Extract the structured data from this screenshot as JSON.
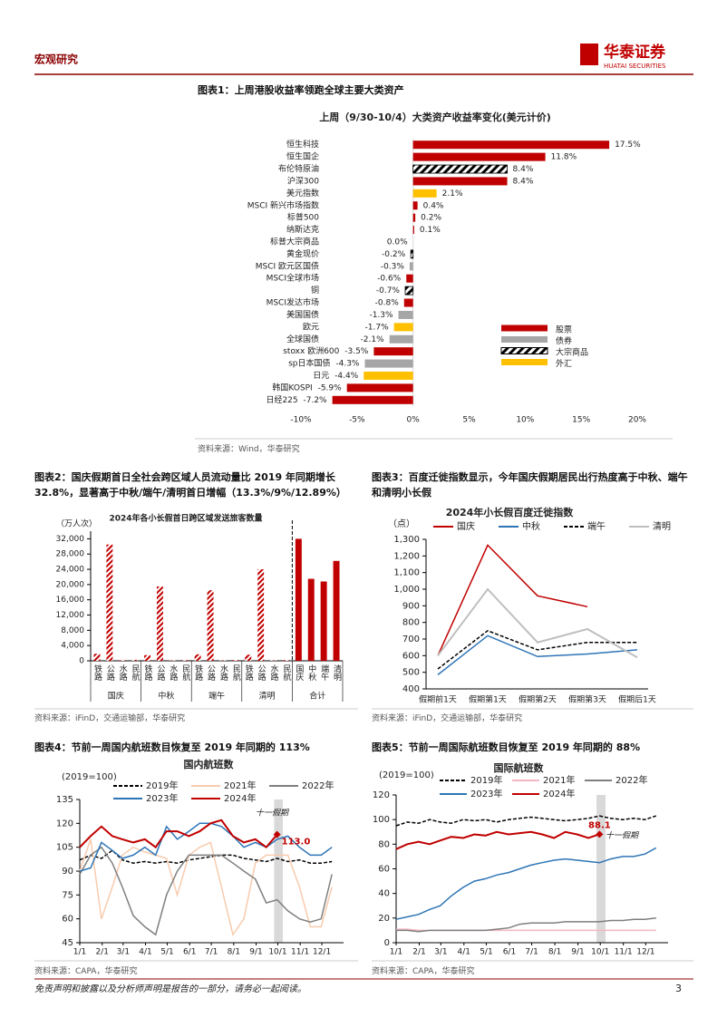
{
  "header": {
    "section": "宏观研究",
    "logo": "华泰证券",
    "logo_en": "HUATAI SECURITIES"
  },
  "footer": {
    "disclaimer": "免责声明和披露以及分析师声明是报告的一部分，请务必一起阅读。",
    "page": 3
  },
  "chart_data": [
    {
      "type": "hbar",
      "caption": "图表1：上周港股收益率领跑全球主要大类资产",
      "title": "上周（9/30-10/4）大类资产收益率变化(美元计价)",
      "source": "资料来源：Wind，华泰研究",
      "categories": [
        "恒生科技",
        "恒生国企",
        "布伦特原油",
        "沪深300",
        "美元指数",
        "MSCI 新兴市场指数",
        "标普500",
        "纳斯达克",
        "标普大宗商品",
        "黄金现价",
        "MSCI 欧元区国债",
        "MSCI全球市场",
        "铜",
        "MSCI发达市场",
        "美国国债",
        "欧元",
        "全球国债",
        "stoxx 欧洲600",
        "sp日本国债",
        "日元",
        "韩国KOSPI",
        "日经225"
      ],
      "values": [
        17.5,
        11.8,
        8.4,
        8.4,
        2.1,
        0.4,
        0.2,
        0.1,
        0.0,
        -0.2,
        -0.3,
        -0.6,
        -0.7,
        -0.8,
        -1.3,
        -1.7,
        -2.1,
        -3.5,
        -4.3,
        -4.4,
        -5.9,
        -7.2
      ],
      "value_labels": [
        "17.5%",
        "11.8%",
        "8.4%",
        "8.4%",
        "2.1%",
        "0.4%",
        "0.2%",
        "0.1%",
        "0.0%",
        "-0.2%",
        "-0.3%",
        "-0.6%",
        "-0.7%",
        "-0.8%",
        "-1.3%",
        "-1.7%",
        "-2.1%",
        "-3.5%",
        "-4.3%",
        "-4.4%",
        "-5.9%",
        "-7.2%"
      ],
      "colors": [
        "#c00000",
        "#c00000",
        "hatch",
        "#c00000",
        "#ffc000",
        "#c00000",
        "#c00000",
        "#c00000",
        "hatch",
        "hatch",
        "#a6a6a6",
        "#c00000",
        "hatch",
        "#c00000",
        "#a6a6a6",
        "#ffc000",
        "#a6a6a6",
        "#c00000",
        "#a6a6a6",
        "#ffc000",
        "#c00000",
        "#c00000"
      ],
      "legend": [
        {
          "name": "股票",
          "color": "#c00000"
        },
        {
          "name": "债券",
          "color": "#a6a6a6"
        },
        {
          "name": "大宗商品",
          "color": "hatch"
        },
        {
          "name": "外汇",
          "color": "#ffc000"
        }
      ],
      "xlim": [
        -10,
        20
      ],
      "xticks": [
        {
          "value": -10,
          "label": "-10%"
        },
        {
          "value": -5,
          "label": "-5%"
        },
        {
          "value": 0,
          "label": "0%"
        },
        {
          "value": 5,
          "label": "5%"
        },
        {
          "value": 10,
          "label": "10%"
        },
        {
          "value": 15,
          "label": "15%"
        },
        {
          "value": 20,
          "label": "20%"
        }
      ]
    },
    {
      "type": "grouped-bar",
      "caption": "图表2：国庆假期首日全社会跨区域人员流动量比 2019 年同期增长 32.8%，显著高于中秋/端午/清明首日增幅（13.3%/9%/12.89%）",
      "title": "2024年各小长假首日跨区域发送旅客数量",
      "unit": "（万人次）",
      "source": "资料来源：iFinD，交通运输部，华泰研究",
      "color": "#c00000",
      "groups": [
        {
          "name": "国庆",
          "style": "hatch",
          "categories": [
            "铁路",
            "公路",
            "水路",
            "民航"
          ],
          "values": [
            1850,
            30500,
            150,
            250
          ]
        },
        {
          "name": "中秋",
          "style": "hatch",
          "categories": [
            "铁路",
            "公路",
            "水路",
            "民航"
          ],
          "values": [
            1500,
            19500,
            100,
            180
          ]
        },
        {
          "name": "端午",
          "style": "hatch",
          "categories": [
            "铁路",
            "公路",
            "水路",
            "民航"
          ],
          "values": [
            1700,
            18500,
            100,
            180
          ]
        },
        {
          "name": "清明",
          "style": "hatch",
          "categories": [
            "铁路",
            "公路",
            "水路",
            "民航"
          ],
          "values": [
            1600,
            24000,
            100,
            180
          ]
        },
        {
          "name": "合计",
          "style": "solid",
          "categories": [
            "国庆",
            "中秋",
            "端午",
            "清明"
          ],
          "values": [
            32000,
            21500,
            20800,
            26200
          ]
        }
      ],
      "ylim": [
        0,
        34000
      ],
      "yticks": [
        0,
        {
          "value": 4000,
          "label": "4,000"
        },
        {
          "value": 8000,
          "label": "8,000"
        },
        {
          "value": 12000,
          "label": "12,000"
        },
        {
          "value": 16000,
          "label": "16,000"
        },
        {
          "value": 20000,
          "label": "20,000"
        },
        {
          "value": 24000,
          "label": "24,000"
        },
        {
          "value": 28000,
          "label": "28,000"
        },
        {
          "value": 32000,
          "label": "32,000"
        }
      ]
    },
    {
      "type": "line",
      "caption": "图表3：百度迁徙指数显示，今年国庆假期居民出行热度高于中秋、端午和清明小长假",
      "title": "2024年小长假百度迁徙指数",
      "unit": "（点）",
      "source": "资料来源：iFinD，交通运输部，华泰研究",
      "categories": [
        "假期前1天",
        "假期第1天",
        "假期第2天",
        "假期第3天",
        "假期后1天"
      ],
      "series": [
        {
          "name": "国庆",
          "color": "#c00000",
          "values": [
            600,
            1265,
            960,
            895,
            null
          ]
        },
        {
          "name": "中秋",
          "color": "#2e75b6",
          "values": [
            485,
            720,
            595,
            610,
            635
          ]
        },
        {
          "name": "端午",
          "color": "#000000",
          "dash": true,
          "values": [
            520,
            750,
            635,
            680,
            680
          ]
        },
        {
          "name": "清明",
          "color": "#bfbfbf",
          "values": [
            600,
            1000,
            680,
            760,
            590
          ]
        }
      ],
      "ylim": [
        400,
        1300
      ],
      "yticks": [
        400,
        500,
        600,
        700,
        800,
        900,
        {
          "value": 1000,
          "label": "1,000"
        },
        {
          "value": 1100,
          "label": "1,100"
        },
        {
          "value": 1200,
          "label": "1,200"
        },
        {
          "value": 1300,
          "label": "1,300"
        }
      ]
    },
    {
      "type": "line",
      "caption": "图表4：节前一周国内航班数目恢复至 2019 年同期的 113%",
      "title": "国内航班数",
      "unit": "(2019=100)",
      "source": "资料来源：CAPA，华泰研究",
      "x": [
        1,
        16,
        31,
        46,
        60,
        75,
        91,
        106,
        121,
        136,
        152,
        167,
        182,
        197,
        213,
        228,
        244,
        259,
        274,
        289,
        305,
        320,
        335,
        350
      ],
      "xlim": [
        1,
        366
      ],
      "xticks": [
        {
          "value": 1,
          "label": "1/1"
        },
        {
          "value": 32,
          "label": "2/1"
        },
        {
          "value": 61,
          "label": "3/1"
        },
        {
          "value": 92,
          "label": "4/1"
        },
        {
          "value": 122,
          "label": "5/1"
        },
        {
          "value": 153,
          "label": "6/1"
        },
        {
          "value": 183,
          "label": "7/1"
        },
        {
          "value": 214,
          "label": "8/1"
        },
        {
          "value": 245,
          "label": "9/1"
        },
        {
          "value": 275,
          "label": "10/1"
        },
        {
          "value": 306,
          "label": "11/1"
        },
        {
          "value": 336,
          "label": "12/1"
        }
      ],
      "highlight": {
        "label": "十一假期",
        "x": [
          270,
          282
        ]
      },
      "series": [
        {
          "name": "2019年",
          "color": "#000000",
          "dash": true,
          "values": [
            97,
            100,
            98,
            103,
            97,
            95,
            96,
            95,
            96,
            95,
            97,
            98,
            99,
            100,
            100,
            98,
            97,
            96,
            98,
            96,
            97,
            95,
            95,
            96
          ]
        },
        {
          "name": "2021年",
          "color": "#f8cbad",
          "values": [
            90,
            110,
            60,
            80,
            100,
            105,
            102,
            100,
            98,
            75,
            100,
            105,
            108,
            80,
            50,
            60,
            95,
            100,
            100,
            100,
            80,
            55,
            55,
            80
          ]
        },
        {
          "name": "2022年",
          "color": "#7f7f7f",
          "values": [
            88,
            100,
            105,
            95,
            80,
            62,
            55,
            50,
            75,
            90,
            100,
            100,
            100,
            100,
            95,
            90,
            85,
            70,
            72,
            65,
            60,
            58,
            60,
            88
          ]
        },
        {
          "name": "2023年",
          "color": "#2e75b6",
          "values": [
            90,
            92,
            108,
            103,
            98,
            100,
            105,
            100,
            118,
            110,
            115,
            120,
            120,
            118,
            112,
            105,
            108,
            105,
            110,
            112,
            105,
            100,
            100,
            105
          ]
        },
        {
          "name": "2024年",
          "color": "#c00000",
          "values": [
            105,
            112,
            118,
            112,
            110,
            108,
            110,
            105,
            115,
            115,
            112,
            115,
            120,
            122,
            112,
            108,
            110,
            105,
            113,
            null,
            null,
            null,
            null,
            null
          ],
          "value_labels": [
            null,
            null,
            null,
            null,
            null,
            null,
            null,
            null,
            null,
            null,
            null,
            null,
            null,
            null,
            null,
            null,
            null,
            null,
            "113.0",
            null,
            null,
            null,
            null,
            null
          ]
        }
      ],
      "ylim": [
        45,
        135
      ],
      "yticks": [
        45,
        60,
        75,
        90,
        105,
        120,
        135
      ]
    },
    {
      "type": "line",
      "caption": "图表5：节前一周国际航班数目恢复至 2019 年同期的 88%",
      "title": "国际航班数",
      "unit": "(2019=100)",
      "source": "资料来源：CAPA，华泰研究",
      "x": [
        1,
        16,
        31,
        46,
        60,
        75,
        91,
        106,
        121,
        136,
        152,
        167,
        182,
        197,
        213,
        228,
        244,
        259,
        274,
        289,
        305,
        320,
        335,
        350
      ],
      "xlim": [
        1,
        366
      ],
      "xticks": [
        {
          "value": 1,
          "label": "1/1"
        },
        {
          "value": 32,
          "label": "2/1"
        },
        {
          "value": 61,
          "label": "3/1"
        },
        {
          "value": 92,
          "label": "4/1"
        },
        {
          "value": 122,
          "label": "5/1"
        },
        {
          "value": 153,
          "label": "6/1"
        },
        {
          "value": 183,
          "label": "7/1"
        },
        {
          "value": 214,
          "label": "8/1"
        },
        {
          "value": 245,
          "label": "9/1"
        },
        {
          "value": 275,
          "label": "10/1"
        },
        {
          "value": 306,
          "label": "11/1"
        },
        {
          "value": 336,
          "label": "12/1"
        }
      ],
      "highlight": {
        "label": "十一假期",
        "x": [
          270,
          282
        ]
      },
      "series": [
        {
          "name": "2019年",
          "color": "#000000",
          "dash": true,
          "values": [
            95,
            98,
            97,
            100,
            98,
            97,
            100,
            99,
            100,
            98,
            100,
            101,
            102,
            101,
            100,
            99,
            100,
            101,
            103,
            101,
            100,
            101,
            100,
            103
          ]
        },
        {
          "name": "2021年",
          "color": "#f4b6c2",
          "values": [
            11,
            11,
            10,
            10,
            10,
            10,
            10,
            10,
            10,
            10,
            10,
            10,
            10,
            10,
            10,
            10,
            10,
            10,
            10,
            10,
            10,
            10,
            10,
            10
          ]
        },
        {
          "name": "2022年",
          "color": "#7f7f7f",
          "values": [
            10,
            10,
            9,
            10,
            10,
            10,
            10,
            10,
            10,
            11,
            12,
            15,
            16,
            16,
            16,
            17,
            17,
            17,
            17,
            18,
            18,
            19,
            19,
            20
          ]
        },
        {
          "name": "2023年",
          "color": "#2e75b6",
          "values": [
            19,
            21,
            23,
            27,
            30,
            38,
            45,
            50,
            52,
            55,
            57,
            60,
            63,
            65,
            67,
            68,
            67,
            66,
            65,
            68,
            70,
            70,
            72,
            77
          ]
        },
        {
          "name": "2024年",
          "color": "#c00000",
          "values": [
            76,
            80,
            82,
            80,
            83,
            86,
            85,
            88,
            87,
            90,
            88,
            89,
            90,
            88,
            85,
            90,
            88,
            85,
            88.1,
            null,
            null,
            null,
            null,
            null
          ],
          "value_labels": [
            null,
            null,
            null,
            null,
            null,
            null,
            null,
            null,
            null,
            null,
            null,
            null,
            null,
            null,
            null,
            null,
            null,
            null,
            "88.1",
            null,
            null,
            null,
            null,
            null
          ]
        }
      ],
      "ylim": [
        0,
        120
      ],
      "yticks": [
        0,
        20,
        40,
        60,
        80,
        100,
        120
      ]
    }
  ]
}
